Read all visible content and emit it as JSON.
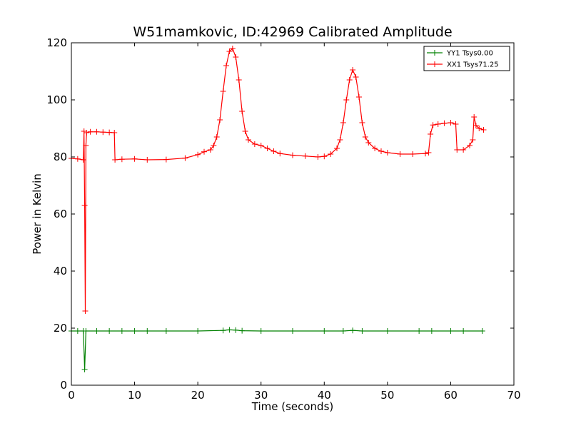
{
  "chart_data": {
    "type": "line",
    "title": "W51mamkovic, ID:42969 Calibrated Amplitude",
    "xlabel": "Time (seconds)",
    "ylabel": "Power in Kelvin",
    "xlim": [
      0,
      70
    ],
    "ylim": [
      0,
      120
    ],
    "xticks": [
      0,
      10,
      20,
      30,
      40,
      50,
      60,
      70
    ],
    "yticks": [
      0,
      20,
      40,
      60,
      80,
      100,
      120
    ],
    "grid": false,
    "legend_position": "top-right",
    "marker": "+",
    "series": [
      {
        "name": "YY1 Tsys0.00",
        "color": "#008000",
        "points": [
          [
            0,
            19
          ],
          [
            1,
            19
          ],
          [
            1.9,
            19
          ],
          [
            2.1,
            5.5
          ],
          [
            2.3,
            19
          ],
          [
            4,
            19
          ],
          [
            6,
            19
          ],
          [
            8,
            19
          ],
          [
            10,
            19
          ],
          [
            12,
            19
          ],
          [
            15,
            19
          ],
          [
            20,
            19
          ],
          [
            24,
            19.2
          ],
          [
            25,
            19.4
          ],
          [
            26,
            19.3
          ],
          [
            27,
            19.1
          ],
          [
            30,
            19
          ],
          [
            35,
            19
          ],
          [
            40,
            19
          ],
          [
            43,
            19
          ],
          [
            44.5,
            19.2
          ],
          [
            46,
            19
          ],
          [
            50,
            19
          ],
          [
            55,
            19
          ],
          [
            57,
            19
          ],
          [
            60,
            19
          ],
          [
            62,
            19
          ],
          [
            65,
            19
          ]
        ]
      },
      {
        "name": "XX1 Tsys71.25",
        "color": "#ff0000",
        "points": [
          [
            0,
            79.5
          ],
          [
            1,
            79.3
          ],
          [
            1.9,
            79
          ],
          [
            2.0,
            89
          ],
          [
            2.1,
            63
          ],
          [
            2.2,
            26
          ],
          [
            2.3,
            84
          ],
          [
            2.4,
            88.5
          ],
          [
            3,
            88.8
          ],
          [
            4,
            88.8
          ],
          [
            5,
            88.7
          ],
          [
            6,
            88.6
          ],
          [
            6.8,
            88.5
          ],
          [
            6.9,
            79
          ],
          [
            8,
            79.2
          ],
          [
            10,
            79.3
          ],
          [
            12,
            79
          ],
          [
            15,
            79.1
          ],
          [
            18,
            79.6
          ],
          [
            20,
            80.8
          ],
          [
            21,
            81.8
          ],
          [
            22,
            82.5
          ],
          [
            22.5,
            84
          ],
          [
            23,
            87
          ],
          [
            23.5,
            93
          ],
          [
            24,
            103
          ],
          [
            24.5,
            112
          ],
          [
            25,
            117
          ],
          [
            25.5,
            118
          ],
          [
            26,
            115
          ],
          [
            26.5,
            107
          ],
          [
            27,
            96
          ],
          [
            27.5,
            89
          ],
          [
            28,
            86
          ],
          [
            29,
            84.5
          ],
          [
            30,
            84
          ],
          [
            31,
            83
          ],
          [
            32,
            82
          ],
          [
            33,
            81.2
          ],
          [
            35,
            80.6
          ],
          [
            37,
            80.3
          ],
          [
            39,
            80
          ],
          [
            40,
            80.2
          ],
          [
            41,
            81
          ],
          [
            42,
            83
          ],
          [
            42.5,
            86
          ],
          [
            43,
            92
          ],
          [
            43.5,
            100
          ],
          [
            44,
            107
          ],
          [
            44.5,
            110.5
          ],
          [
            45,
            108
          ],
          [
            45.5,
            101
          ],
          [
            46,
            92
          ],
          [
            46.5,
            87
          ],
          [
            47,
            85
          ],
          [
            48,
            83
          ],
          [
            49,
            82
          ],
          [
            50,
            81.5
          ],
          [
            52,
            81
          ],
          [
            54,
            81
          ],
          [
            56,
            81.2
          ],
          [
            56.5,
            81.5
          ],
          [
            56.8,
            88
          ],
          [
            57.2,
            91.2
          ],
          [
            58,
            91.5
          ],
          [
            59,
            91.8
          ],
          [
            60,
            92
          ],
          [
            60.8,
            91.5
          ],
          [
            61,
            82.5
          ],
          [
            62,
            82.5
          ],
          [
            63,
            84
          ],
          [
            63.5,
            86
          ],
          [
            63.7,
            94
          ],
          [
            64,
            91
          ],
          [
            64.5,
            90
          ],
          [
            65.2,
            89.5
          ]
        ]
      }
    ]
  }
}
